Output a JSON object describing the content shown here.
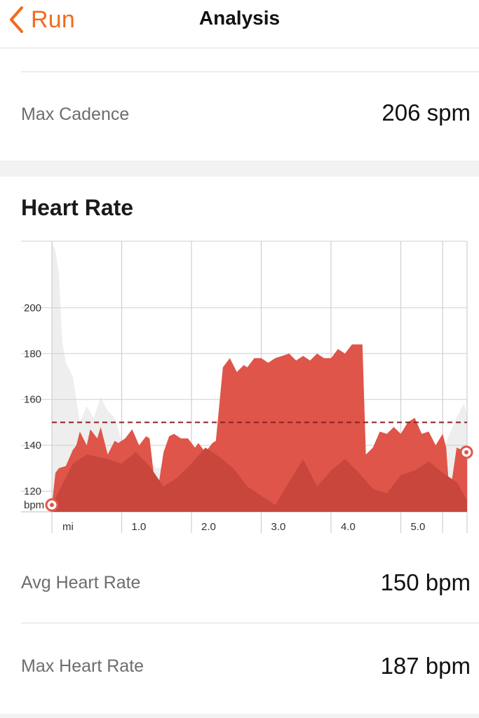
{
  "nav": {
    "back_label": "Run",
    "title": "Analysis"
  },
  "cadence": {
    "label": "Max Cadence",
    "value": "206 spm"
  },
  "heart_rate": {
    "title": "Heart Rate",
    "avg_label": "Avg Heart Rate",
    "avg_value": "150 bpm",
    "max_label": "Max Heart Rate",
    "max_value": "187 bpm"
  },
  "colors": {
    "accent": "#f26b1d",
    "hr_fill": "#df5549",
    "hr_fill_dark": "#c8463c",
    "avg_line": "#8b2020",
    "elevation": "#eeeeee"
  },
  "chart_data": {
    "type": "area",
    "title": "",
    "xlabel": "mi",
    "ylabel": "bpm",
    "xlim": [
      0,
      5.95
    ],
    "ylim": [
      111,
      229
    ],
    "x_ticks": [
      {
        "value": 0,
        "label": "mi"
      },
      {
        "value": 1.0,
        "label": "1.0"
      },
      {
        "value": 2.0,
        "label": "2.0"
      },
      {
        "value": 3.0,
        "label": "3.0"
      },
      {
        "value": 4.0,
        "label": "4.0"
      },
      {
        "value": 5.0,
        "label": "5.0"
      }
    ],
    "y_ticks": [
      {
        "value": 114,
        "label": "bpm"
      },
      {
        "value": 120,
        "label": "120"
      },
      {
        "value": 140,
        "label": "140"
      },
      {
        "value": 160,
        "label": "160"
      },
      {
        "value": 180,
        "label": "180"
      },
      {
        "value": 200,
        "label": "200"
      }
    ],
    "grid": true,
    "avg_value": 150,
    "series": [
      {
        "x": [
          0,
          0.05,
          0.1,
          0.2,
          0.3,
          0.35,
          0.4,
          0.5,
          0.55,
          0.65,
          0.7,
          0.8,
          0.9,
          0.95,
          1.05,
          1.15,
          1.25,
          1.35,
          1.4,
          1.5,
          1.6,
          1.68,
          1.75,
          1.85,
          1.95,
          2.05,
          2.1,
          2.2,
          2.3,
          2.35,
          2.45,
          2.55,
          2.65,
          2.75,
          2.8,
          2.9,
          3.0,
          3.1,
          3.2,
          3.3,
          3.4,
          3.5,
          3.6,
          3.7,
          3.8,
          3.9,
          4.0,
          4.1,
          4.2,
          4.3,
          4.4,
          4.45,
          4.5,
          4.6,
          4.7,
          4.8,
          4.9,
          5.0,
          5.1,
          5.2,
          5.3,
          5.4,
          5.5,
          5.6,
          5.65,
          5.7,
          5.8,
          5.95
        ],
        "y": [
          114,
          128,
          130,
          131,
          138,
          140,
          146,
          140,
          147,
          143,
          148,
          136,
          142,
          141,
          143,
          147,
          140,
          144,
          143,
          117,
          137,
          144,
          145,
          143,
          143,
          139,
          141,
          137,
          141,
          142,
          174,
          178,
          172,
          175,
          174,
          178,
          178,
          176,
          178,
          179,
          180,
          177,
          179,
          177,
          180,
          178,
          178,
          182,
          180,
          184,
          184,
          184,
          136,
          139,
          146,
          145,
          148,
          145,
          150,
          152,
          145,
          146,
          140,
          145,
          139,
          118,
          139,
          137
        ]
      },
      {
        "x": [
          0,
          0.3,
          0.5,
          0.8,
          1.0,
          1.2,
          1.4,
          1.6,
          1.8,
          2.0,
          2.2,
          2.4,
          2.6,
          2.8,
          3.0,
          3.2,
          3.4,
          3.6,
          3.8,
          4.0,
          4.2,
          4.4,
          4.6,
          4.8,
          5.0,
          5.2,
          5.4,
          5.6,
          5.8,
          5.95
        ],
        "y": [
          114,
          132,
          136,
          134,
          132,
          137,
          131,
          122,
          126,
          132,
          139,
          135,
          130,
          122,
          118,
          114,
          124,
          134,
          122,
          129,
          134,
          128,
          121,
          119,
          127,
          129,
          133,
          128,
          124,
          116
        ]
      },
      {
        "x": [
          0,
          0.05,
          0.1,
          0.15,
          0.2,
          0.25,
          0.3,
          0.4,
          0.5,
          0.6,
          0.7,
          0.8,
          0.9,
          1.0,
          1.5,
          2.0,
          2.5,
          3.0,
          3.5,
          4.0,
          4.5,
          5.0,
          5.5,
          5.7,
          5.8,
          5.9,
          5.95
        ],
        "y": [
          229,
          225,
          215,
          185,
          176,
          173,
          170,
          150,
          157,
          152,
          161,
          155,
          152,
          142,
          130,
          133,
          131,
          124,
          120,
          123,
          126,
          126,
          130,
          145,
          152,
          158,
          154
        ]
      }
    ]
  }
}
